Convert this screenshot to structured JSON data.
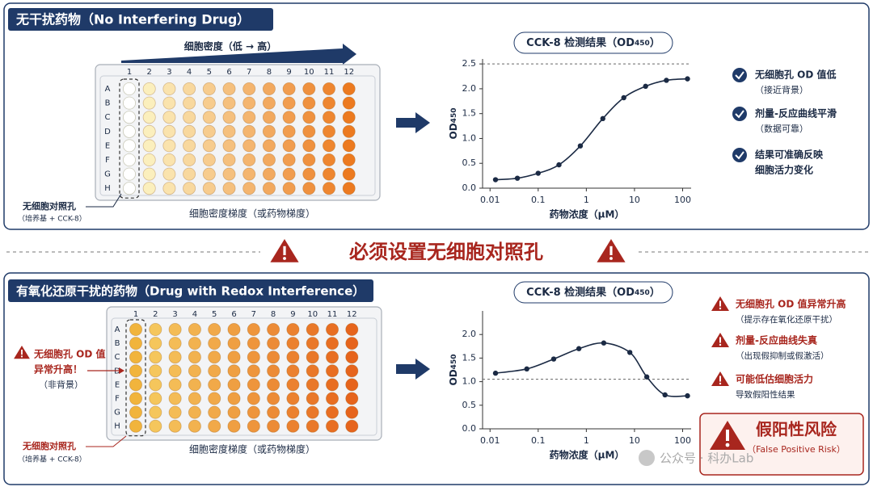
{
  "top": {
    "title": "无干扰药物（No Interfering Drug）",
    "plate": {
      "gradient_label": "细胞密度（低 → 高）",
      "columns": [
        "1",
        "2",
        "3",
        "4",
        "5",
        "6",
        "7",
        "8",
        "9",
        "10",
        "11",
        "12"
      ],
      "rows": [
        "A",
        "B",
        "C",
        "D",
        "E",
        "F",
        "G",
        "H"
      ],
      "control_label": "无细胞对照孔",
      "control_sub": "（培养基 + CCK-8）",
      "axis_label": "细胞密度梯度（或药物梯度）"
    },
    "checks": [
      {
        "lines": [
          "无细胞孔 OD 值低"
        ],
        "sub": "（接近背景）"
      },
      {
        "lines": [
          "剂量-反应曲线平滑"
        ],
        "sub": "（数据可靠）"
      },
      {
        "lines": [
          "结果可准确反映",
          "细胞活力变化"
        ]
      }
    ]
  },
  "divider": "必须设置无细胞对照孔",
  "bottom": {
    "title": "有氧化还原干扰的药物（Drug with Redox Interference）",
    "plate": {
      "columns": [
        "1",
        "2",
        "3",
        "4",
        "5",
        "6",
        "7",
        "8",
        "9",
        "10",
        "11",
        "12"
      ],
      "rows": [
        "A",
        "B",
        "C",
        "D",
        "E",
        "F",
        "G",
        "H"
      ],
      "note": [
        "无细胞孔 OD 值",
        "异常升高！",
        "（非背景）"
      ],
      "control_label": "无细胞对照孔",
      "control_sub": "（培养基 + CCK-8）",
      "axis_label": "细胞密度梯度（或药物梯度）"
    },
    "warnings": [
      {
        "title": "无细胞孔 OD 值异常升高",
        "sub": "（提示存在氧化还原干扰）"
      },
      {
        "title": "剂量-反应曲线失真",
        "sub": "（出现假抑制或假激活）"
      },
      {
        "title": "可能低估细胞活力",
        "sub": "导致假阳性结果"
      }
    ],
    "risk": {
      "title": "假阳性风险",
      "sub": "（False Positive Risk）"
    }
  },
  "watermark": "公众号 · 科办Lab",
  "chart_data": [
    {
      "type": "line",
      "title_parts": [
        "CCK-8 检测结果（OD",
        "450",
        "）"
      ],
      "y_label": [
        "OD",
        "450"
      ],
      "x_label": "药物浓度（μM）",
      "x": [
        0.013,
        0.037,
        0.1,
        0.27,
        0.75,
        2.2,
        6,
        17,
        46,
        126
      ],
      "values": [
        0.17,
        0.2,
        0.3,
        0.47,
        0.85,
        1.4,
        1.82,
        2.05,
        2.17,
        2.2
      ],
      "color": "#1b2a44",
      "log_x": true,
      "reference_line": 2.5,
      "xlim": [
        0.007,
        150
      ],
      "ylim": [
        0,
        2.6
      ],
      "xticks": [
        0.01,
        0.1,
        1,
        10,
        100
      ],
      "yticks": [
        {
          "value": 0,
          "label": "0.0"
        },
        {
          "value": 0.5,
          "label": "0.5"
        },
        {
          "value": 1,
          "label": "1.0"
        },
        {
          "value": 1.5,
          "label": "1.5"
        },
        {
          "value": 2,
          "label": "2.0"
        },
        {
          "value": 2.5,
          "label": "2.5"
        }
      ]
    },
    {
      "type": "line",
      "title_parts": [
        "CCK-8 检测结果（OD",
        "450",
        "）"
      ],
      "y_label": [
        "OD",
        "450"
      ],
      "x_label": "药物浓度（μM）",
      "x": [
        0.013,
        0.058,
        0.21,
        0.7,
        2.3,
        8,
        18,
        43,
        126
      ],
      "values": [
        1.18,
        1.27,
        1.48,
        1.7,
        1.82,
        1.62,
        1.1,
        0.72,
        0.7
      ],
      "color": "#1b2a44",
      "log_x": true,
      "reference_line": 1.05,
      "xlim": [
        0.007,
        150
      ],
      "ylim": [
        0,
        2.5
      ],
      "xticks": [
        0.01,
        0.1,
        1,
        10,
        100
      ],
      "yticks": [
        {
          "value": 0,
          "label": "0.0"
        },
        {
          "value": 0.5,
          "label": "0.5"
        },
        {
          "value": 1,
          "label": "1.0"
        },
        {
          "value": 1.5,
          "label": "1.5"
        },
        {
          "value": 2,
          "label": "2.0"
        }
      ]
    }
  ]
}
